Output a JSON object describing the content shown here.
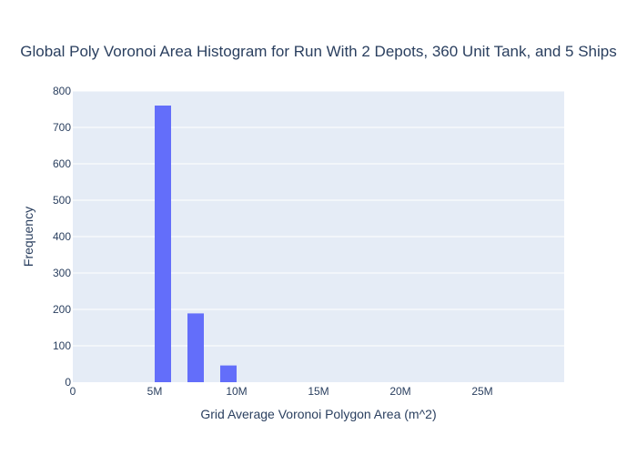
{
  "chart_data": {
    "type": "bar",
    "title": "Global Poly Voronoi Area Histogram for Run With 2 Depots, 360 Unit Tank, and 5 Ships",
    "xlabel": "Grid Average Voronoi Polygon Area (m^2)",
    "ylabel": "Frequency",
    "xlim": [
      0,
      30000000
    ],
    "ylim": [
      0,
      800
    ],
    "x_ticks": [
      {
        "value": 0,
        "label": "0"
      },
      {
        "value": 5000000,
        "label": "5M"
      },
      {
        "value": 10000000,
        "label": "10M"
      },
      {
        "value": 15000000,
        "label": "15M"
      },
      {
        "value": 20000000,
        "label": "20M"
      },
      {
        "value": 25000000,
        "label": "25M"
      }
    ],
    "y_ticks": [
      {
        "value": 0,
        "label": "0"
      },
      {
        "value": 100,
        "label": "100"
      },
      {
        "value": 200,
        "label": "200"
      },
      {
        "value": 300,
        "label": "300"
      },
      {
        "value": 400,
        "label": "400"
      },
      {
        "value": 500,
        "label": "500"
      },
      {
        "value": 600,
        "label": "600"
      },
      {
        "value": 700,
        "label": "700"
      },
      {
        "value": 800,
        "label": "800"
      }
    ],
    "bins": [
      {
        "x0": 5000000,
        "x1": 6000000,
        "count": 760
      },
      {
        "x0": 7000000,
        "x1": 8000000,
        "count": 189
      },
      {
        "x0": 9000000,
        "x1": 10000000,
        "count": 46
      }
    ],
    "grid": true,
    "colors": {
      "bar": "#636efa",
      "plot_bg": "#e5ecf6",
      "grid": "#ffffff",
      "text": "#2a3f5f"
    }
  }
}
